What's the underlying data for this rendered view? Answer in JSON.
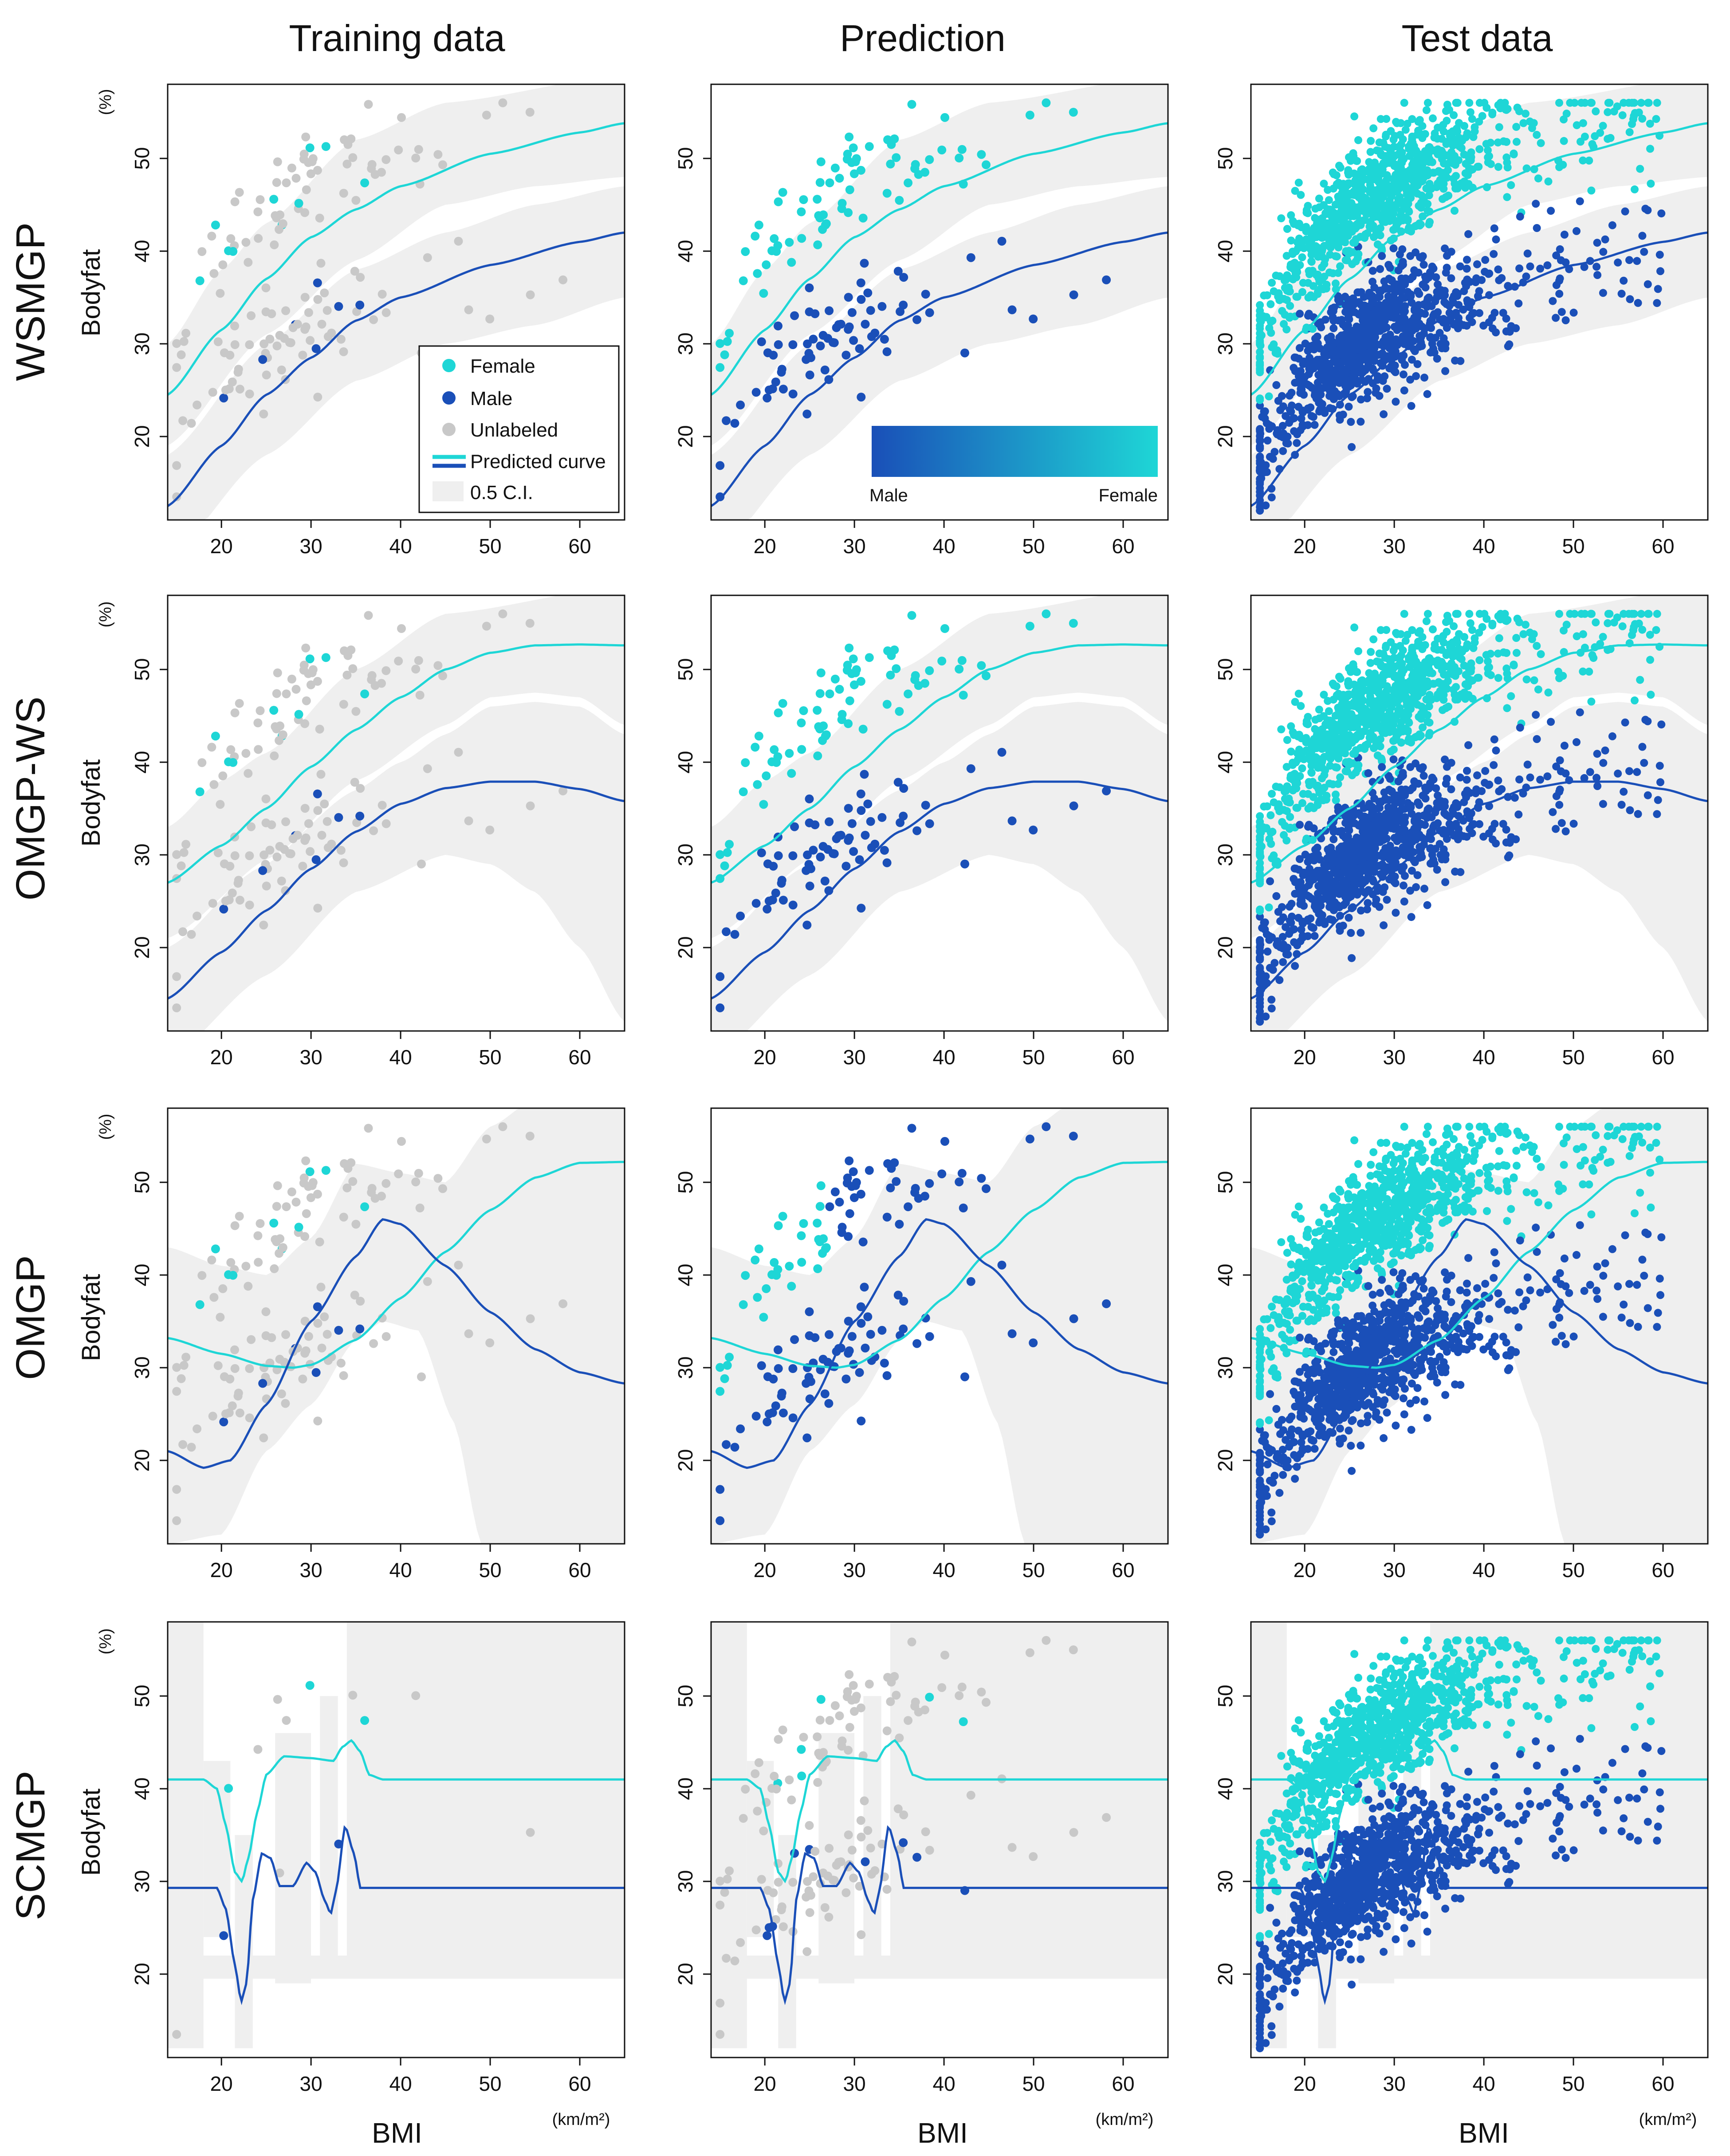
{
  "figure": {
    "column_titles": [
      "Training data",
      "Prediction",
      "Test data"
    ],
    "row_labels": [
      "WSMGP",
      "OMGP-WS",
      "OMGP",
      "SCMGP"
    ],
    "y_axis_label": "Bodyfat",
    "y_axis_unit": "(%)",
    "x_axis_label": "BMI",
    "x_axis_unit": "(km/m²)",
    "legend": {
      "female": "Female",
      "male": "Male",
      "unlabeled": "Unlabeled",
      "predicted_curve": "Predicted curve",
      "ci": "0.5 C.I."
    },
    "colorbar": {
      "left": "Male",
      "right": "Female"
    },
    "colors": {
      "female": "#1ed6d6",
      "male": "#1a4fb8",
      "unlabeled": "#c8c8c8",
      "ci_band": "#efefef",
      "axis": "#111111"
    }
  },
  "chart_data": {
    "type": "scatter",
    "x_axis": {
      "label": "BMI",
      "range": [
        14,
        65
      ],
      "ticks": [
        20,
        30,
        40,
        50,
        60
      ]
    },
    "y_axis": {
      "label": "Bodyfat",
      "range": [
        11,
        58
      ],
      "ticks": [
        20,
        30,
        40,
        50
      ]
    },
    "models": [
      {
        "name": "WSMGP",
        "female_curve": [
          [
            14,
            24.5
          ],
          [
            20,
            31.5
          ],
          [
            25,
            37
          ],
          [
            30,
            41.5
          ],
          [
            35,
            44.5
          ],
          [
            40,
            47
          ],
          [
            50,
            50.5
          ],
          [
            60,
            52.8
          ],
          [
            65,
            53.8
          ]
        ],
        "male_curve": [
          [
            14,
            12.5
          ],
          [
            20,
            19
          ],
          [
            25,
            24.5
          ],
          [
            30,
            28.5
          ],
          [
            35,
            32.5
          ],
          [
            40,
            35
          ],
          [
            50,
            38.5
          ],
          [
            60,
            41
          ],
          [
            65,
            42
          ]
        ],
        "female_ci": [
          [
            14,
            19
          ],
          [
            25,
            31
          ],
          [
            35,
            39
          ],
          [
            45,
            45
          ],
          [
            55,
            47
          ],
          [
            65,
            48
          ]
        ],
        "male_ci": [
          [
            14,
            18
          ],
          [
            25,
            30
          ],
          [
            35,
            38
          ],
          [
            45,
            42
          ],
          [
            55,
            45
          ],
          [
            65,
            47
          ]
        ],
        "ci_lower": [
          [
            14,
            7
          ],
          [
            25,
            18
          ],
          [
            35,
            26
          ],
          [
            45,
            30
          ],
          [
            55,
            32
          ],
          [
            65,
            35
          ]
        ],
        "ci_upper": [
          [
            14,
            30
          ],
          [
            20,
            38
          ],
          [
            25,
            43
          ],
          [
            35,
            52
          ],
          [
            45,
            56
          ],
          [
            65,
            59
          ]
        ]
      },
      {
        "name": "OMGP-WS",
        "female_curve": [
          [
            14,
            27
          ],
          [
            20,
            31
          ],
          [
            25,
            35
          ],
          [
            30,
            39.5
          ],
          [
            35,
            43.5
          ],
          [
            40,
            47
          ],
          [
            45,
            50
          ],
          [
            50,
            51.8
          ],
          [
            55,
            52.6
          ],
          [
            60,
            52.7
          ],
          [
            65,
            52.6
          ]
        ],
        "male_curve": [
          [
            14,
            14.5
          ],
          [
            20,
            19.5
          ],
          [
            25,
            24
          ],
          [
            30,
            28.5
          ],
          [
            35,
            32.5
          ],
          [
            40,
            35.5
          ],
          [
            45,
            37.2
          ],
          [
            50,
            37.9
          ],
          [
            55,
            37.9
          ],
          [
            60,
            37.1
          ],
          [
            65,
            35.8
          ]
        ],
        "female_ci": [
          [
            14,
            21
          ],
          [
            25,
            29
          ],
          [
            35,
            38
          ],
          [
            45,
            44
          ],
          [
            50,
            47
          ],
          [
            55,
            47.5
          ],
          [
            60,
            47
          ],
          [
            65,
            44
          ]
        ],
        "male_ci": [
          [
            14,
            20
          ],
          [
            25,
            29.5
          ],
          [
            35,
            37
          ],
          [
            40,
            40
          ],
          [
            45,
            43
          ],
          [
            50,
            46
          ],
          [
            55,
            46.5
          ],
          [
            60,
            46
          ],
          [
            65,
            43
          ]
        ],
        "ci_lower": [
          [
            14,
            8
          ],
          [
            25,
            17
          ],
          [
            35,
            26
          ],
          [
            45,
            30
          ],
          [
            50,
            29
          ],
          [
            55,
            26
          ],
          [
            60,
            20
          ],
          [
            65,
            12
          ]
        ],
        "ci_upper": [
          [
            14,
            33
          ],
          [
            20,
            38
          ],
          [
            25,
            41
          ],
          [
            35,
            50
          ],
          [
            45,
            56
          ],
          [
            65,
            59
          ]
        ]
      },
      {
        "name": "OMGP",
        "female_curve": [
          [
            14,
            33.2
          ],
          [
            20,
            31.5
          ],
          [
            25,
            30.2
          ],
          [
            28,
            30
          ],
          [
            30,
            30.3
          ],
          [
            35,
            33
          ],
          [
            40,
            37.5
          ],
          [
            45,
            42.5
          ],
          [
            50,
            47
          ],
          [
            55,
            50.5
          ],
          [
            60,
            52.1
          ],
          [
            65,
            52.2
          ]
        ],
        "male_curve": [
          [
            14,
            21
          ],
          [
            18,
            19.2
          ],
          [
            21,
            20
          ],
          [
            25,
            26
          ],
          [
            30,
            35
          ],
          [
            35,
            42
          ],
          [
            38,
            46
          ],
          [
            40,
            45.5
          ],
          [
            45,
            41
          ],
          [
            50,
            36
          ],
          [
            55,
            32
          ],
          [
            60,
            29.5
          ],
          [
            65,
            28.3
          ]
        ],
        "ci_lower": [
          [
            14,
            11
          ],
          [
            20,
            12
          ],
          [
            25,
            21
          ],
          [
            30,
            26
          ],
          [
            35,
            33
          ],
          [
            38,
            35
          ],
          [
            42,
            34
          ],
          [
            46,
            24
          ],
          [
            49,
            11
          ]
        ],
        "ci_upper": [
          [
            14,
            43
          ],
          [
            20,
            41
          ],
          [
            25,
            40
          ],
          [
            30,
            44
          ],
          [
            35,
            52
          ],
          [
            40,
            51
          ],
          [
            45,
            50
          ],
          [
            50,
            56
          ],
          [
            55,
            59
          ],
          [
            65,
            59
          ]
        ],
        "right_band_lower": [
          [
            56,
            11
          ],
          [
            58,
            16
          ],
          [
            60,
            23
          ],
          [
            62,
            28
          ],
          [
            65,
            32
          ]
        ]
      },
      {
        "name": "SCMGP",
        "female_curve": [
          [
            14,
            41
          ],
          [
            18,
            41
          ],
          [
            19.5,
            40
          ],
          [
            20.5,
            36
          ],
          [
            21.5,
            31
          ],
          [
            22.3,
            30
          ],
          [
            23,
            32.5
          ],
          [
            24,
            37.5
          ],
          [
            25,
            41.5
          ],
          [
            27,
            43.5
          ],
          [
            30,
            43.3
          ],
          [
            32.5,
            43
          ],
          [
            33.5,
            44.5
          ],
          [
            34.5,
            45.2
          ],
          [
            35.5,
            44
          ],
          [
            36.5,
            41.5
          ],
          [
            38,
            41
          ],
          [
            65,
            41
          ]
        ],
        "male_curve": [
          [
            14,
            29.3
          ],
          [
            19.5,
            29.3
          ],
          [
            20.5,
            27
          ],
          [
            21.5,
            21
          ],
          [
            22.2,
            17
          ],
          [
            22.8,
            19
          ],
          [
            23.5,
            28
          ],
          [
            24.5,
            33
          ],
          [
            25.5,
            32.5
          ],
          [
            26.5,
            29.5
          ],
          [
            28,
            29.5
          ],
          [
            29.5,
            32
          ],
          [
            30.5,
            31
          ],
          [
            31.5,
            28
          ],
          [
            32.2,
            26.5
          ],
          [
            32.8,
            29
          ],
          [
            33.8,
            36
          ],
          [
            34.8,
            33
          ],
          [
            35.5,
            29.3
          ],
          [
            65,
            29.3
          ]
        ],
        "ci_bands": "multiple_narrow_bands"
      }
    ],
    "series_counts": {
      "training_points": 150,
      "test_points": 1900
    }
  }
}
